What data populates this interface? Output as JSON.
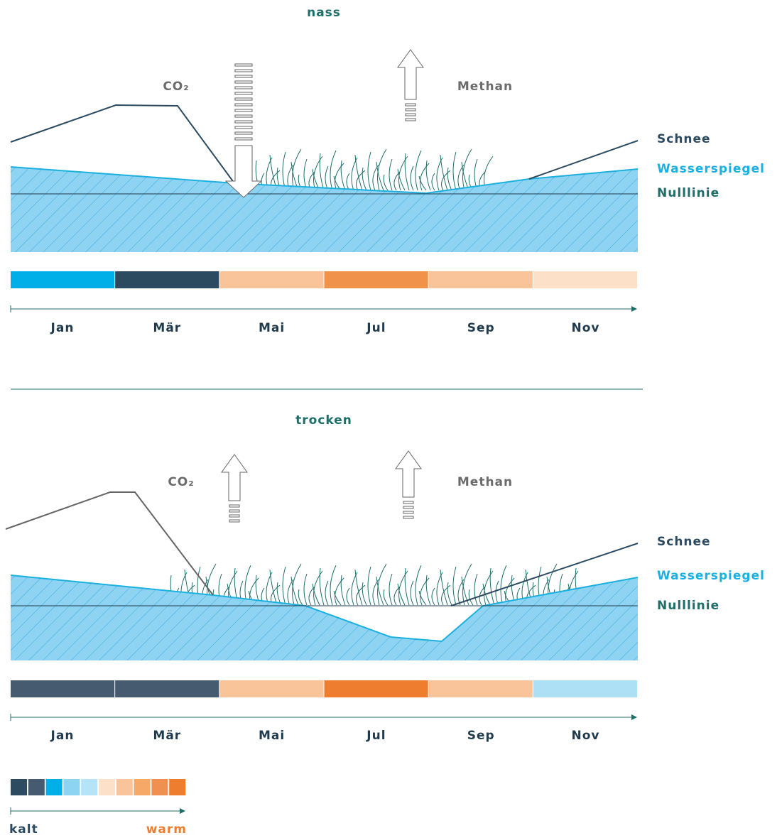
{
  "panels": [
    {
      "title": "nass",
      "co2": "CO₂",
      "methane": "Methan",
      "labels": {
        "snow": "Schnee",
        "water": "Wasserspiegel",
        "zero": "Nulllinie"
      },
      "months": [
        "Jan",
        "Mär",
        "Mai",
        "Jul",
        "Sep",
        "Nov"
      ]
    },
    {
      "title": "trocken",
      "co2": "CO₂",
      "methane": "Methan",
      "labels": {
        "snow": "Schnee",
        "water": "Wasserspiegel",
        "zero": "Nulllinie"
      },
      "months": [
        "Jan",
        "Mär",
        "Mai",
        "Jul",
        "Sep",
        "Nov"
      ]
    }
  ],
  "legend": {
    "low": "kalt",
    "high": "warm"
  }
}
